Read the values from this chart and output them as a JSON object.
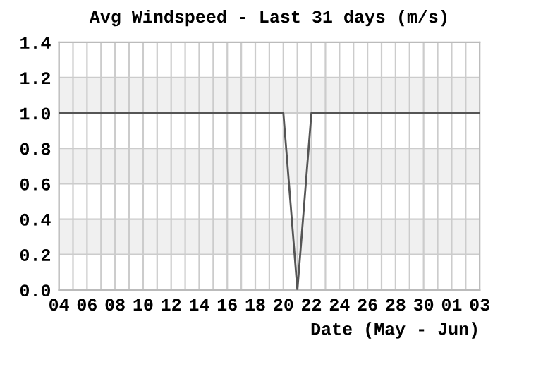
{
  "chart_data": {
    "type": "line",
    "title": "Avg Windspeed - Last 31 days (m/s)",
    "xlabel": "Date (May - Jun)",
    "categories": [
      "04",
      null,
      "06",
      null,
      "08",
      null,
      "10",
      null,
      "12",
      null,
      "14",
      null,
      "16",
      null,
      "18",
      null,
      "20",
      null,
      "22",
      null,
      "24",
      null,
      "26",
      null,
      "28",
      null,
      "30",
      null,
      "01",
      null,
      "03"
    ],
    "values": [
      1,
      1,
      1,
      1,
      1,
      1,
      1,
      1,
      1,
      1,
      1,
      1,
      1,
      1,
      1,
      1,
      1,
      0,
      1,
      1,
      1,
      1,
      1,
      1,
      1,
      1,
      1,
      1,
      1,
      1,
      1
    ],
    "color": "#555555",
    "ylim": [
      0,
      1.4
    ],
    "yticks": [
      {
        "value": 0,
        "label": "0.0"
      },
      {
        "value": 0.2,
        "label": "0.2"
      },
      {
        "value": 0.4,
        "label": "0.4"
      },
      {
        "value": 0.6,
        "label": "0.6"
      },
      {
        "value": 0.8,
        "label": "0.8"
      },
      {
        "value": 1,
        "label": "1.0"
      },
      {
        "value": 1.2,
        "label": "1.2"
      },
      {
        "value": 1.4,
        "label": "1.4"
      }
    ],
    "bands": [
      {
        "axis": "y",
        "from": 0.2,
        "to": 0.4,
        "color": "#f0f0f0"
      },
      {
        "axis": "y",
        "from": 0.6,
        "to": 0.8,
        "color": "#f0f0f0"
      },
      {
        "axis": "y",
        "from": 1.0,
        "to": 1.2,
        "color": "#f0f0f0"
      }
    ],
    "grid": true,
    "marker": "none",
    "line_style": "solid"
  }
}
